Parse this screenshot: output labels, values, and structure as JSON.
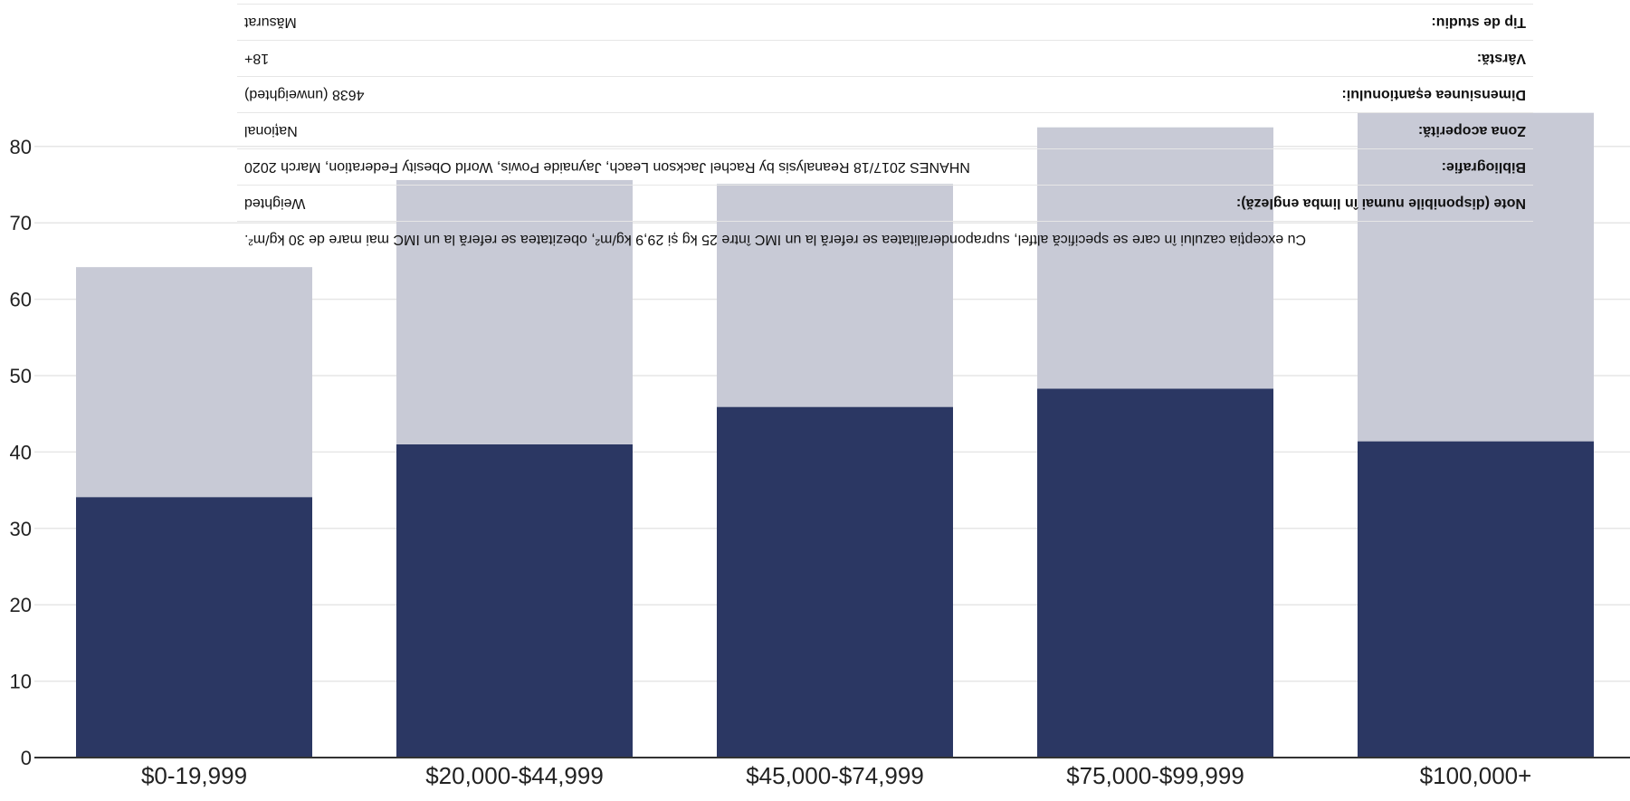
{
  "chart_data": {
    "type": "bar",
    "stacked": true,
    "categories": [
      "$0-19,999",
      "$20,000-$44,999",
      "$45,000-$74,999",
      "$75,000-$99,999",
      "$100,000+"
    ],
    "series": [
      {
        "color": "#2b3763",
        "values": [
          34.1,
          41.0,
          45.9,
          48.3,
          41.4
        ]
      },
      {
        "color": "#c8cad6",
        "values": [
          30.1,
          34.6,
          29.2,
          34.2,
          43.0
        ]
      }
    ],
    "ylim": [
      0,
      85
    ],
    "yticks": [
      "0",
      "10",
      "20",
      "30",
      "40",
      "50",
      "60",
      "70",
      "80"
    ],
    "grid": true
  },
  "info_panel": {
    "note_text": "Cu excepția cazului în care se specifică altfel, supraponderalitatea se referă la un IMC între 25 kg și 29,9 kg/m², obezitatea se referă la un IMC mai mare de 30 kg/m².",
    "rows": [
      {
        "label": "Note (disponibile numai în limba engleză):",
        "value": "Weighted"
      },
      {
        "label": "Bibliografie:",
        "value": "NHANES 2017/18 Reanalysis by Rachel Jackson Leach, Jaynaide Powis, World Obesity Federation, March 2020"
      },
      {
        "label": "Zona acoperită:",
        "value": "Național"
      },
      {
        "label": "Dimensiunea eșantionului:",
        "value": "4638 (unweighted)"
      },
      {
        "label": "Vârstă:",
        "value": "18+"
      },
      {
        "label": "Tip de studiu:",
        "value": "Măsurat"
      }
    ]
  }
}
